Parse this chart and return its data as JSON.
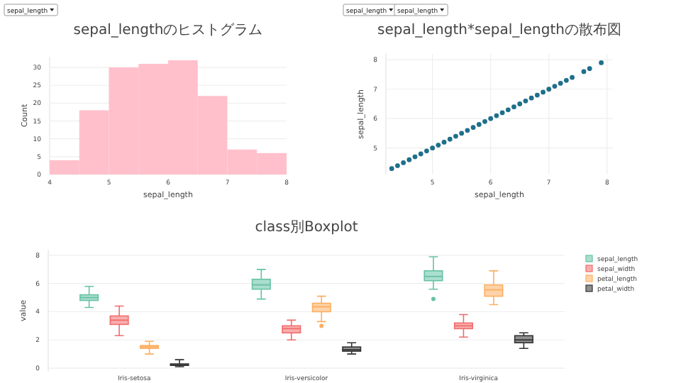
{
  "chart_data": [
    {
      "type": "histogram",
      "title": "sepal_lengthのヒストグラム",
      "xlabel": "sepal_length",
      "ylabel": "Count",
      "annotations": [
        "sepal_length"
      ],
      "bins": [
        4,
        4.5,
        5,
        5.5,
        6,
        6.5,
        7,
        7.5,
        8
      ],
      "values": [
        4,
        18,
        30,
        31,
        32,
        22,
        7,
        6
      ],
      "color": "#ffc0cb",
      "xlim": [
        4,
        8
      ],
      "ylim": [
        0,
        33
      ],
      "xticks": [
        4,
        5,
        6,
        7,
        8
      ],
      "yticks": [
        0,
        5,
        10,
        15,
        20,
        25,
        30
      ],
      "grid": "y"
    },
    {
      "type": "scatter",
      "title": "sepal_length*sepal_lengthの散布図",
      "xlabel": "sepal_length",
      "ylabel": "sepal_length",
      "annotations": [
        "sepal_length",
        "sepal_length"
      ],
      "marker": "circle",
      "grid": true,
      "xlim": [
        4.2,
        8.1
      ],
      "ylim": [
        4.1,
        8.2
      ],
      "xticks": [
        5,
        6,
        7,
        8
      ],
      "yticks": [
        5,
        6,
        7,
        8
      ],
      "x": [
        4.3,
        4.4,
        4.5,
        4.6,
        4.7,
        4.8,
        4.9,
        5.0,
        5.1,
        5.2,
        5.3,
        5.4,
        5.5,
        5.6,
        5.7,
        5.8,
        5.9,
        6.0,
        6.1,
        6.2,
        6.3,
        6.4,
        6.5,
        6.6,
        6.7,
        6.8,
        6.9,
        7.0,
        7.1,
        7.2,
        7.3,
        7.4,
        7.6,
        7.7,
        7.9
      ],
      "series": [
        {
          "color": "#1f6f8b",
          "values": [
            4.3,
            4.4,
            4.5,
            4.6,
            4.7,
            4.8,
            4.9,
            5.0,
            5.1,
            5.2,
            5.3,
            5.4,
            5.5,
            5.6,
            5.7,
            5.8,
            5.9,
            6.0,
            6.1,
            6.2,
            6.3,
            6.4,
            6.5,
            6.6,
            6.7,
            6.8,
            6.9,
            7.0,
            7.1,
            7.2,
            7.3,
            7.4,
            7.6,
            7.7,
            7.9
          ]
        }
      ]
    },
    {
      "type": "box",
      "title": "class別Boxplot",
      "ylabel": "value",
      "categories": [
        "Iris-setosa",
        "Iris-versicolor",
        "Iris-virginica"
      ],
      "ylim": [
        -0.25,
        8.4
      ],
      "yticks": [
        0,
        2,
        4,
        6,
        8
      ],
      "grid": "y",
      "legend": "top right",
      "series": [
        {
          "name": "sepal_length",
          "color": "#66c2a5",
          "boxes": [
            {
              "low": 4.3,
              "q1": 4.8,
              "median": 5.0,
              "q3": 5.2,
              "high": 5.8
            },
            {
              "low": 4.9,
              "q1": 5.6,
              "median": 5.9,
              "q3": 6.3,
              "high": 7.0
            },
            {
              "low": 5.6,
              "q1": 6.2,
              "median": 6.5,
              "q3": 6.9,
              "high": 7.9,
              "outliers": [
                4.9
              ]
            }
          ]
        },
        {
          "name": "sepal_width",
          "color": "#f26b6b",
          "boxes": [
            {
              "low": 2.3,
              "q1": 3.1,
              "median": 3.4,
              "q3": 3.7,
              "high": 4.4
            },
            {
              "low": 2.0,
              "q1": 2.5,
              "median": 2.8,
              "q3": 3.0,
              "high": 3.4
            },
            {
              "low": 2.2,
              "q1": 2.8,
              "median": 3.0,
              "q3": 3.2,
              "high": 3.8
            }
          ]
        },
        {
          "name": "petal_length",
          "color": "#fdae61",
          "boxes": [
            {
              "low": 1.0,
              "q1": 1.4,
              "median": 1.5,
              "q3": 1.6,
              "high": 1.9
            },
            {
              "low": 3.3,
              "q1": 4.0,
              "median": 4.35,
              "q3": 4.6,
              "high": 5.1,
              "outliers": [
                3.0
              ]
            },
            {
              "low": 4.5,
              "q1": 5.1,
              "median": 5.55,
              "q3": 5.9,
              "high": 6.9
            }
          ]
        },
        {
          "name": "petal_width",
          "color": "#333333",
          "boxes": [
            {
              "low": 0.1,
              "q1": 0.2,
              "median": 0.2,
              "q3": 0.3,
              "high": 0.6
            },
            {
              "low": 1.0,
              "q1": 1.2,
              "median": 1.3,
              "q3": 1.5,
              "high": 1.8
            },
            {
              "low": 1.4,
              "q1": 1.8,
              "median": 2.0,
              "q3": 2.3,
              "high": 2.5
            }
          ]
        }
      ]
    }
  ]
}
